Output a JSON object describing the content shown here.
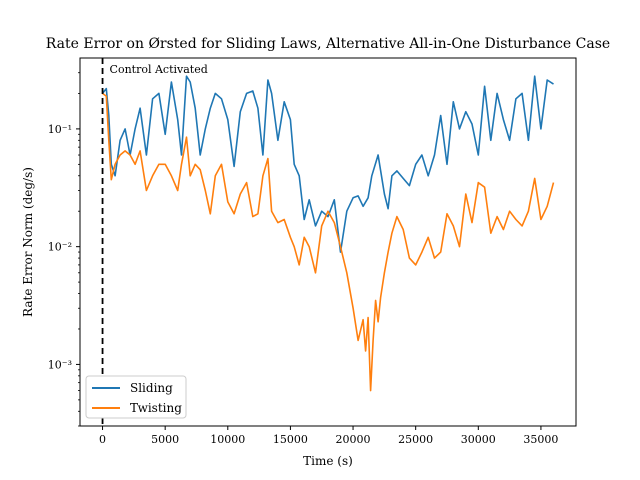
{
  "chart_data": {
    "type": "line",
    "title": "Rate Error on Ørsted for Sliding Laws, Alternative All-in-One Disturbance Case",
    "xlabel": "Time (s)",
    "ylabel": "Rate Error Norm (deg/s)",
    "xlim": [
      -1800,
      37800
    ],
    "ylim": [
      0.0003,
      0.4
    ],
    "yscale": "log",
    "grid": false,
    "legend_loc": "lower left",
    "x_ticks": [
      0,
      5000,
      10000,
      15000,
      20000,
      25000,
      30000,
      35000
    ],
    "x_tick_labels": [
      "0",
      "5000",
      "10000",
      "15000",
      "20000",
      "25000",
      "30000",
      "35000"
    ],
    "y_ticks": [
      0.001,
      0.01,
      0.1
    ],
    "y_tick_labels": [
      "10⁻³",
      "10⁻²",
      "10⁻¹"
    ],
    "annotation": {
      "text": "Control Activated",
      "x": 0
    },
    "series": [
      {
        "name": "Sliding",
        "color": "#1f77b4",
        "x": [
          0,
          300,
          500,
          700,
          1000,
          1400,
          1800,
          2200,
          2600,
          3000,
          3500,
          4000,
          4500,
          5000,
          5500,
          6000,
          6300,
          6700,
          7000,
          7400,
          7800,
          8200,
          8600,
          9000,
          9500,
          10000,
          10500,
          11000,
          11500,
          12000,
          12400,
          12800,
          13200,
          13500,
          14000,
          14500,
          15000,
          15300,
          15700,
          16100,
          16500,
          17000,
          17500,
          18000,
          18500,
          19000,
          19500,
          20000,
          20400,
          20800,
          21200,
          21500,
          22000,
          22500,
          22800,
          23100,
          23500,
          24000,
          24500,
          25000,
          25500,
          26000,
          26500,
          27000,
          27500,
          28000,
          28500,
          29000,
          29500,
          30000,
          30500,
          31000,
          31500,
          32000,
          32500,
          33000,
          33500,
          34000,
          34500,
          35000,
          35500,
          36000
        ],
        "values": [
          0.2,
          0.22,
          0.13,
          0.05,
          0.04,
          0.08,
          0.1,
          0.06,
          0.1,
          0.15,
          0.06,
          0.18,
          0.2,
          0.09,
          0.25,
          0.12,
          0.06,
          0.28,
          0.25,
          0.15,
          0.06,
          0.1,
          0.15,
          0.2,
          0.18,
          0.12,
          0.048,
          0.14,
          0.2,
          0.21,
          0.15,
          0.06,
          0.26,
          0.2,
          0.08,
          0.17,
          0.12,
          0.05,
          0.04,
          0.017,
          0.025,
          0.015,
          0.02,
          0.018,
          0.025,
          0.009,
          0.02,
          0.026,
          0.027,
          0.022,
          0.026,
          0.04,
          0.06,
          0.028,
          0.021,
          0.04,
          0.044,
          0.038,
          0.033,
          0.05,
          0.06,
          0.04,
          0.06,
          0.13,
          0.05,
          0.17,
          0.1,
          0.14,
          0.11,
          0.06,
          0.23,
          0.08,
          0.2,
          0.12,
          0.08,
          0.18,
          0.2,
          0.08,
          0.28,
          0.1,
          0.26,
          0.24
        ]
      },
      {
        "name": "Twisting",
        "color": "#ff7f0e",
        "x": [
          0,
          300,
          500,
          700,
          1000,
          1400,
          1800,
          2200,
          2600,
          3000,
          3500,
          4000,
          4500,
          5000,
          5500,
          6000,
          6300,
          6700,
          7000,
          7400,
          7800,
          8200,
          8600,
          9000,
          9500,
          10000,
          10500,
          11000,
          11500,
          12000,
          12400,
          12800,
          13200,
          13500,
          14000,
          14500,
          15000,
          15300,
          15700,
          16100,
          16500,
          17000,
          17500,
          18000,
          18500,
          19000,
          19500,
          20000,
          20400,
          20800,
          21000,
          21200,
          21400,
          21600,
          21800,
          22000,
          22200,
          22500,
          22800,
          23100,
          23500,
          24000,
          24500,
          25000,
          25500,
          26000,
          26500,
          27000,
          27500,
          28000,
          28500,
          29000,
          29500,
          30000,
          30500,
          31000,
          31500,
          32000,
          32500,
          33000,
          33500,
          34000,
          34500,
          35000,
          35500,
          36000
        ],
        "values": [
          0.2,
          0.19,
          0.08,
          0.037,
          0.05,
          0.06,
          0.065,
          0.06,
          0.05,
          0.065,
          0.03,
          0.04,
          0.05,
          0.05,
          0.04,
          0.03,
          0.05,
          0.085,
          0.04,
          0.05,
          0.045,
          0.03,
          0.019,
          0.04,
          0.05,
          0.024,
          0.019,
          0.028,
          0.035,
          0.018,
          0.019,
          0.04,
          0.056,
          0.02,
          0.016,
          0.017,
          0.012,
          0.01,
          0.007,
          0.012,
          0.01,
          0.006,
          0.015,
          0.02,
          0.016,
          0.01,
          0.006,
          0.003,
          0.0016,
          0.0024,
          0.0013,
          0.0025,
          0.0006,
          0.0016,
          0.0035,
          0.0023,
          0.0037,
          0.006,
          0.009,
          0.013,
          0.018,
          0.014,
          0.008,
          0.007,
          0.009,
          0.012,
          0.008,
          0.009,
          0.019,
          0.015,
          0.01,
          0.028,
          0.016,
          0.035,
          0.032,
          0.013,
          0.018,
          0.014,
          0.02,
          0.017,
          0.015,
          0.02,
          0.038,
          0.017,
          0.022,
          0.035
        ]
      }
    ]
  }
}
